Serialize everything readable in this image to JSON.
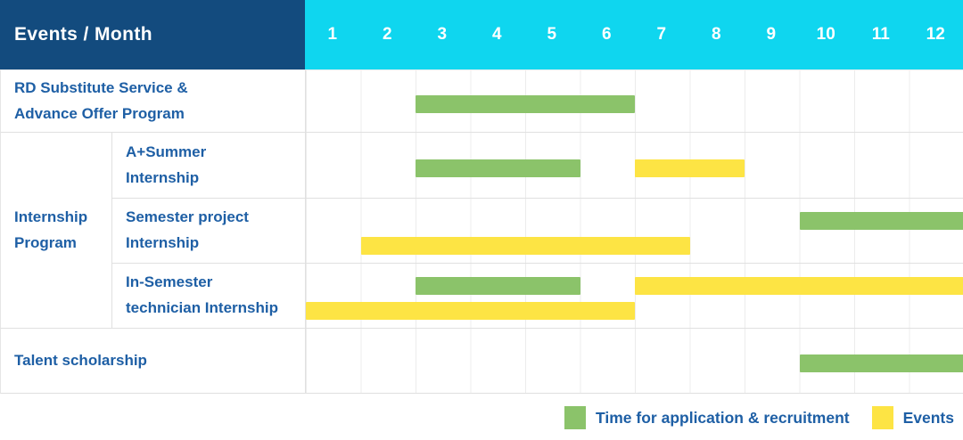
{
  "header": {
    "corner_label": "Events / Month",
    "months": [
      "1",
      "2",
      "3",
      "4",
      "5",
      "6",
      "7",
      "8",
      "9",
      "10",
      "11",
      "12"
    ]
  },
  "colors": {
    "header_bg": "#134B7E",
    "months_bg": "#0FD6EF",
    "application": "#8BC36A",
    "events": "#FDE444",
    "label_text": "#1E5FA5",
    "grid_line": "#ECECEC"
  },
  "chart_data": {
    "type": "gantt",
    "x_unit": "month",
    "x_range": [
      1,
      12
    ],
    "grid": true,
    "group_label": "Internship\nProgram",
    "rows": [
      {
        "label": "RD Substitute Service &\nAdvance Offer Program",
        "group": "",
        "bars": [
          {
            "series": "application",
            "start_month": 3,
            "end_month": 6,
            "line": "single"
          }
        ]
      },
      {
        "label": "A+Summer\nInternship",
        "group": "Internship Program",
        "bars": [
          {
            "series": "application",
            "start_month": 3,
            "end_month": 5,
            "line": "single"
          },
          {
            "series": "events",
            "start_month": 7,
            "end_month": 8,
            "line": "single"
          }
        ]
      },
      {
        "label": "Semester project\nInternship",
        "group": "Internship Program",
        "bars": [
          {
            "series": "application",
            "start_month": 10,
            "end_month": 12,
            "line": "top"
          },
          {
            "series": "events",
            "start_month": 2,
            "end_month": 7,
            "line": "bottom"
          }
        ]
      },
      {
        "label": "In-Semester\ntechnician Internship",
        "group": "Internship Program",
        "bars": [
          {
            "series": "application",
            "start_month": 3,
            "end_month": 5,
            "line": "top"
          },
          {
            "series": "events",
            "start_month": 7,
            "end_month": 12,
            "line": "top"
          },
          {
            "series": "events",
            "start_month": 1,
            "end_month": 6,
            "line": "bottom"
          }
        ]
      },
      {
        "label": "Talent scholarship",
        "group": "",
        "bars": [
          {
            "series": "application",
            "start_month": 10,
            "end_month": 12,
            "line": "single"
          }
        ]
      }
    ]
  },
  "legend": {
    "items": [
      {
        "series": "application",
        "label": "Time for application & recruitment"
      },
      {
        "series": "events",
        "label": "Events"
      }
    ]
  }
}
